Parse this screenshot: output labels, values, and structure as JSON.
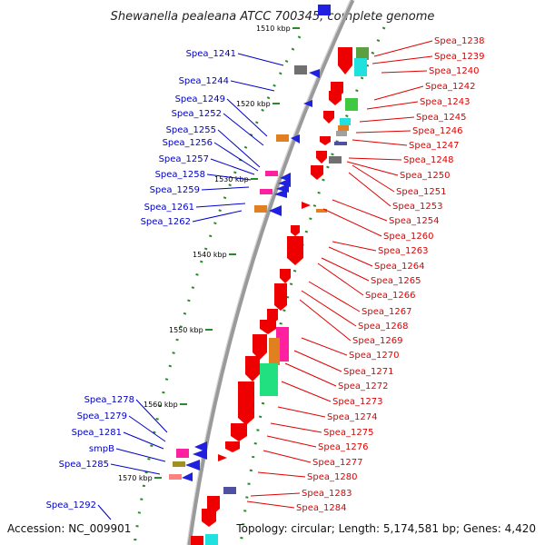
{
  "title": "Shewanella pealeana ATCC 700345, complete genome",
  "footer": {
    "accession": "Accession: NC_009901",
    "summary": "Topology: circular; Length: 5,174,581 bp; Genes: 4,420"
  },
  "colors": {
    "backbone": "#9a9a9a",
    "forward_label": "#e00000",
    "reverse_label": "#0000c8",
    "tick_dots": "#2a8a2a"
  },
  "kbp_ticks": [
    "1510 kbp",
    "1520 kbp",
    "1530 kbp",
    "1540 kbp",
    "1550 kbp",
    "1560 kbp",
    "1570 kbp"
  ],
  "forward_genes": [
    "Spea_1238",
    "Spea_1239",
    "Spea_1240",
    "Spea_1242",
    "Spea_1243",
    "Spea_1245",
    "Spea_1246",
    "Spea_1247",
    "Spea_1248",
    "Spea_1250",
    "Spea_1251",
    "Spea_1253",
    "Spea_1254",
    "Spea_1260",
    "Spea_1263",
    "Spea_1264",
    "Spea_1265",
    "Spea_1266",
    "Spea_1267",
    "Spea_1268",
    "Spea_1269",
    "Spea_1270",
    "Spea_1271",
    "Spea_1272",
    "Spea_1273",
    "Spea_1274",
    "Spea_1275",
    "Spea_1276",
    "Spea_1277",
    "Spea_1280",
    "Spea_1283",
    "Spea_1284"
  ],
  "reverse_genes": [
    "Spea_1241",
    "Spea_1244",
    "Spea_1249",
    "Spea_1252",
    "Spea_1255",
    "Spea_1256",
    "Spea_1257",
    "Spea_1258",
    "Spea_1259",
    "Spea_1261",
    "Spea_1262",
    "Spea_1278",
    "Spea_1279",
    "Spea_1281",
    "smpB",
    "Spea_1285",
    "Spea_1292"
  ]
}
